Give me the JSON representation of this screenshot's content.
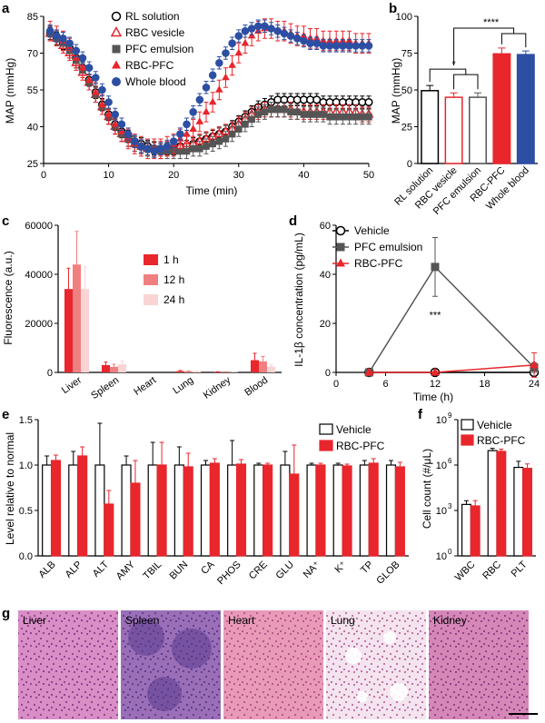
{
  "panels": {
    "a": {
      "label": "a",
      "chart_data": {
        "type": "line",
        "xlabel": "Time (min)",
        "ylabel": "MAP (mmHg)",
        "xlim": [
          0,
          50
        ],
        "ylim": [
          25,
          85
        ],
        "xticks": [
          0,
          10,
          20,
          30,
          40,
          50
        ],
        "yticks": [
          25,
          40,
          55,
          70,
          85
        ],
        "legend_position": "top-left",
        "series": [
          {
            "name": "RL solution",
            "color": "#000000",
            "marker": "open-circle",
            "x": [
              1,
              2,
              3,
              4,
              5,
              6,
              7,
              8,
              9,
              10,
              11,
              12,
              13,
              14,
              15,
              16,
              17,
              18,
              19,
              20,
              21,
              22,
              23,
              24,
              25,
              26,
              27,
              28,
              29,
              30,
              31,
              32,
              33,
              34,
              35,
              36,
              37,
              38,
              39,
              40,
              41,
              42,
              43,
              44,
              45,
              46,
              47,
              48,
              49,
              50
            ],
            "y": [
              78,
              76,
              74,
              72,
              68,
              64,
              59,
              54,
              49,
              45,
              41,
              38,
              36,
              34,
              33,
              32,
              31,
              31,
              31,
              31,
              32,
              32,
              33,
              34,
              35,
              36,
              37,
              38,
              40,
              42,
              44,
              46,
              48,
              49,
              50,
              51,
              51,
              51,
              51,
              51,
              51,
              51,
              50,
              50,
              50,
              50,
              50,
              50,
              50,
              50
            ],
            "err": 2.5
          },
          {
            "name": "RBC vesicle",
            "color": "#e8262c",
            "marker": "open-triangle",
            "x": [
              1,
              2,
              3,
              4,
              5,
              6,
              7,
              8,
              9,
              10,
              11,
              12,
              13,
              14,
              15,
              16,
              17,
              18,
              19,
              20,
              21,
              22,
              23,
              24,
              25,
              26,
              27,
              28,
              29,
              30,
              31,
              32,
              33,
              34,
              35,
              36,
              37,
              38,
              39,
              40,
              41,
              42,
              43,
              44,
              45,
              46,
              47,
              48,
              49,
              50
            ],
            "y": [
              78,
              76,
              73,
              70,
              66,
              62,
              58,
              53,
              48,
              44,
              40,
              37,
              35,
              33,
              32,
              31,
              31,
              31,
              31,
              31,
              32,
              33,
              33,
              34,
              35,
              36,
              37,
              38,
              39,
              41,
              43,
              45,
              46,
              47,
              47,
              47,
              47,
              47,
              46,
              46,
              46,
              46,
              46,
              46,
              46,
              46,
              46,
              46,
              45,
              45
            ],
            "err": 3
          },
          {
            "name": "PFC emulsion",
            "color": "#555555",
            "marker": "square",
            "x": [
              1,
              2,
              3,
              4,
              5,
              6,
              7,
              8,
              9,
              10,
              11,
              12,
              13,
              14,
              15,
              16,
              17,
              18,
              19,
              20,
              21,
              22,
              23,
              24,
              25,
              26,
              27,
              28,
              29,
              30,
              31,
              32,
              33,
              34,
              35,
              36,
              37,
              38,
              39,
              40,
              41,
              42,
              43,
              44,
              45,
              46,
              47,
              48,
              49,
              50
            ],
            "y": [
              78,
              76,
              74,
              71,
              67,
              63,
              58,
              53,
              48,
              44,
              40,
              37,
              35,
              33,
              32,
              31,
              31,
              30,
              30,
              30,
              30,
              30,
              31,
              31,
              32,
              33,
              34,
              35,
              37,
              39,
              41,
              43,
              45,
              46,
              47,
              47,
              47,
              46,
              46,
              45,
              45,
              45,
              45,
              44,
              44,
              44,
              44,
              44,
              44,
              44
            ],
            "err": 3
          },
          {
            "name": "RBC-PFC",
            "color": "#e8262c",
            "marker": "triangle",
            "x": [
              1,
              2,
              3,
              4,
              5,
              6,
              7,
              8,
              9,
              10,
              11,
              12,
              13,
              14,
              15,
              16,
              17,
              18,
              19,
              20,
              21,
              22,
              23,
              24,
              25,
              26,
              27,
              28,
              29,
              30,
              31,
              32,
              33,
              34,
              35,
              36,
              37,
              38,
              39,
              40,
              41,
              42,
              43,
              44,
              45,
              46,
              47,
              48,
              49,
              50
            ],
            "y": [
              79,
              77,
              75,
              72,
              68,
              64,
              59,
              54,
              49,
              45,
              41,
              38,
              35,
              33,
              32,
              31,
              31,
              31,
              32,
              33,
              35,
              37,
              39,
              42,
              46,
              50,
              55,
              60,
              65,
              70,
              74,
              77,
              79,
              80,
              80,
              79,
              79,
              78,
              77,
              77,
              76,
              76,
              75,
              75,
              75,
              75,
              75,
              74,
              74,
              74
            ],
            "err": 4
          },
          {
            "name": "Whole blood",
            "color": "#2d4fa3",
            "marker": "circle",
            "x": [
              1,
              2,
              3,
              4,
              5,
              6,
              7,
              8,
              9,
              10,
              11,
              12,
              13,
              14,
              15,
              16,
              17,
              18,
              19,
              20,
              21,
              22,
              23,
              24,
              25,
              26,
              27,
              28,
              29,
              30,
              31,
              32,
              33,
              34,
              35,
              36,
              37,
              38,
              39,
              40,
              41,
              42,
              43,
              44,
              45,
              46,
              47,
              48,
              49,
              50
            ],
            "y": [
              79,
              77,
              76,
              74,
              71,
              68,
              64,
              60,
              55,
              50,
              45,
              41,
              37,
              34,
              32,
              31,
              30,
              31,
              32,
              34,
              37,
              41,
              46,
              51,
              56,
              61,
              66,
              70,
              74,
              77,
              79,
              80,
              81,
              81,
              80,
              79,
              78,
              77,
              76,
              75,
              74,
              74,
              73,
              73,
              73,
              73,
              73,
              73,
              73,
              73
            ],
            "err": 2.5
          }
        ]
      }
    },
    "b": {
      "label": "b",
      "chart_data": {
        "type": "bar",
        "ylabel": "MAP (mmHg)",
        "ylim": [
          0,
          100
        ],
        "yticks": [
          0,
          25,
          50,
          75,
          100
        ],
        "categories": [
          "RL solution",
          "RBC vesicle",
          "PFC emulsion",
          "RBC-PFC",
          "Whole blood"
        ],
        "values": [
          49.5,
          45,
          45,
          74.5,
          74
        ],
        "errors": [
          3.5,
          3,
          3,
          4,
          2.5
        ],
        "fill": [
          "#ffffff",
          "#ffffff",
          "#ffffff",
          "#e8262c",
          "#2d4fa3"
        ],
        "stroke": [
          "#000000",
          "#e8262c",
          "#555555",
          "#e8262c",
          "#2d4fa3"
        ],
        "significance": [
          "*",
          "****"
        ]
      }
    },
    "c": {
      "label": "c",
      "chart_data": {
        "type": "bar",
        "ylabel": "Fluorescence (a.u.)",
        "ylim": [
          0,
          60000
        ],
        "yticks": [
          0,
          20000,
          40000,
          60000
        ],
        "categories": [
          "Liver",
          "Spleen",
          "Heart",
          "Lung",
          "Kidney",
          "Blood"
        ],
        "legend_position": "center-right",
        "series": [
          {
            "name": "1 h",
            "color": "#e8262c",
            "values": [
              34000,
              3000,
              0,
              500,
              200,
              5000
            ],
            "errors": [
              8500,
              1200,
              0,
              300,
              100,
              2800
            ]
          },
          {
            "name": "12 h",
            "color": "#f08080",
            "values": [
              44000,
              2300,
              0,
              400,
              150,
              4500
            ],
            "errors": [
              13500,
              1000,
              0,
              200,
              100,
              2000
            ]
          },
          {
            "name": "24 h",
            "color": "#fad4d4",
            "values": [
              34000,
              3300,
              0,
              350,
              150,
              2400
            ],
            "errors": [
              9000,
              1300,
              0,
              200,
              100,
              800
            ]
          }
        ]
      }
    },
    "d": {
      "label": "d",
      "chart_data": {
        "type": "line",
        "xlabel": "Time (h)",
        "ylabel": "IL-1β concentration (pg/mL)",
        "xlim": [
          0,
          24
        ],
        "ylim": [
          0,
          60
        ],
        "xticks": [
          0,
          6,
          12,
          18,
          24
        ],
        "yticks": [
          0,
          20,
          40,
          60
        ],
        "legend_position": "top-left",
        "annotation": "***",
        "series": [
          {
            "name": "Vehicle",
            "color": "#000000",
            "marker": "open-circle",
            "x": [
              4,
              12,
              24
            ],
            "y": [
              0,
              0,
              0
            ],
            "err": [
              0.5,
              0.5,
              0.5
            ]
          },
          {
            "name": "PFC emulsion",
            "color": "#555555",
            "marker": "square",
            "x": [
              4,
              12,
              24
            ],
            "y": [
              0,
              43,
              2
            ],
            "err": [
              0.5,
              12,
              2
            ]
          },
          {
            "name": "RBC-PFC",
            "color": "#e8262c",
            "marker": "triangle",
            "x": [
              4,
              12,
              24
            ],
            "y": [
              0,
              0,
              3
            ],
            "err": [
              0.5,
              0.5,
              5
            ]
          }
        ]
      }
    },
    "e": {
      "label": "e",
      "chart_data": {
        "type": "bar",
        "ylabel": "Level relative to normal",
        "ylim": [
          0,
          1.5
        ],
        "yticks": [
          0.0,
          0.5,
          1.0,
          1.5
        ],
        "categories": [
          "ALB",
          "ALP",
          "ALT",
          "AMY",
          "TBIL",
          "BUN",
          "CA",
          "PHOS",
          "CRE",
          "GLU",
          "NA⁺",
          "K⁺",
          "TP",
          "GLOB"
        ],
        "legend_position": "top-right",
        "series": [
          {
            "name": "Vehicle",
            "color": "#ffffff",
            "stroke": "#000000",
            "values": [
              1,
              1,
              1,
              1,
              1,
              1,
              1,
              1,
              1,
              1,
              1,
              1,
              1,
              1
            ],
            "errors": [
              0.1,
              0.15,
              0.46,
              0.1,
              0.25,
              0.2,
              0.05,
              0.27,
              0.02,
              0.15,
              0.02,
              0.02,
              0.05,
              0.05
            ]
          },
          {
            "name": "RBC-PFC",
            "color": "#e8262c",
            "stroke": "#e8262c",
            "values": [
              1.05,
              1.1,
              0.57,
              0.8,
              1.0,
              0.98,
              1.02,
              1.01,
              1.0,
              0.9,
              1.0,
              0.99,
              1.02,
              0.98
            ],
            "errors": [
              0.06,
              0.1,
              0.15,
              0.25,
              0.25,
              0.15,
              0.05,
              0.05,
              0.02,
              0.32,
              0.02,
              0.02,
              0.05,
              0.05
            ]
          }
        ]
      }
    },
    "f": {
      "label": "f",
      "chart_data": {
        "type": "bar",
        "ylabel": "Cell count (#/μL)",
        "log_scale": true,
        "ylim_exponent": [
          0,
          9
        ],
        "ytick_exponents": [
          0,
          3,
          6,
          9
        ],
        "ytick_base": "10",
        "categories": [
          "WBC",
          "RBC",
          "PLT"
        ],
        "legend_position": "top-right",
        "series": [
          {
            "name": "Vehicle",
            "color": "#ffffff",
            "stroke": "#000000",
            "values": [
              2500,
              9000000,
              700000
            ],
            "errors_exp": [
              0.25,
              0.15,
              0.4
            ]
          },
          {
            "name": "RBC-PFC",
            "color": "#e8262c",
            "stroke": "#e8262c",
            "values": [
              2000,
              8000000,
              600000
            ],
            "errors_exp": [
              0.35,
              0.15,
              0.3
            ]
          }
        ]
      }
    },
    "g": {
      "label": "g",
      "tissues": [
        {
          "name": "Liver",
          "base": "#d98ec6",
          "spot": "#8c3f8f"
        },
        {
          "name": "Spleen",
          "base": "#9a6fb8",
          "spot": "#5b3a8c"
        },
        {
          "name": "Heart",
          "base": "#e99ab8",
          "spot": "#b35388"
        },
        {
          "name": "Lung",
          "base": "#f4e4ef",
          "spot": "#c06aa0"
        },
        {
          "name": "Kidney",
          "base": "#d588b8",
          "spot": "#8f3d86"
        }
      ]
    }
  }
}
